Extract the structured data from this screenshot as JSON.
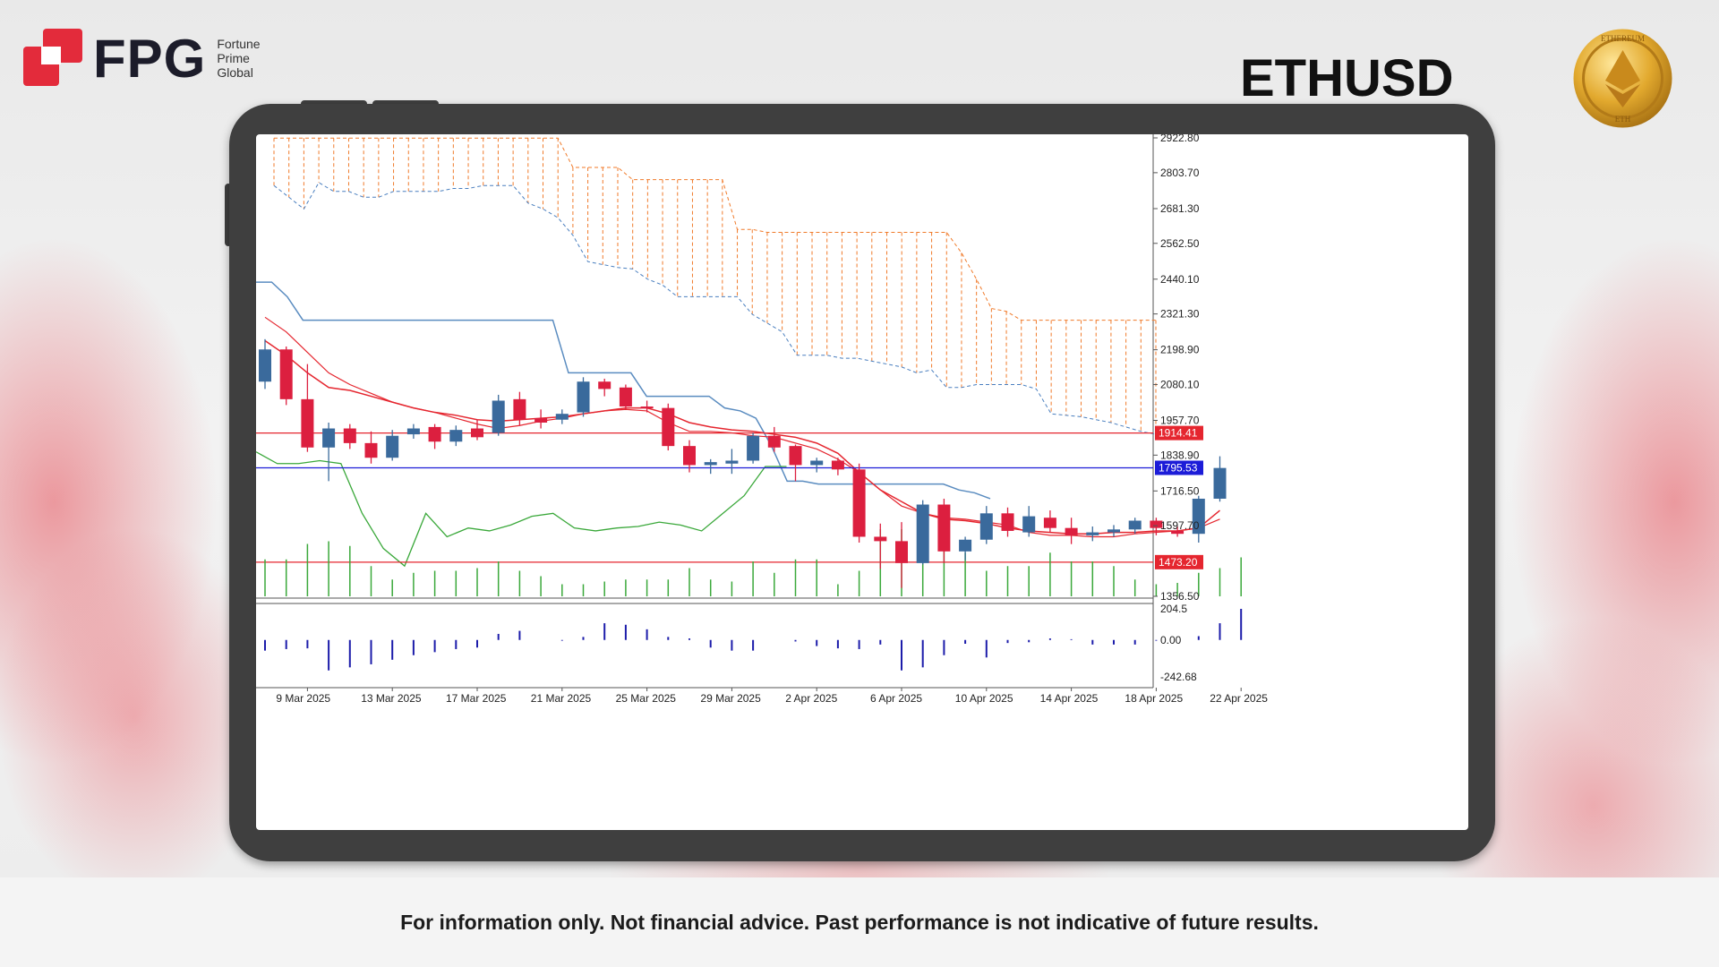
{
  "brand": {
    "name": "FPG",
    "line1": "Fortune",
    "line2": "Prime",
    "line3": "Global",
    "red": "#e32b3b"
  },
  "symbol": "ETHUSD",
  "coin": {
    "top_text": "ETHEREUM",
    "bottom_text": "ETH",
    "icon": "ethereum-diamond-icon"
  },
  "disclaimer": "For information only. Not financial advice. Past performance is not indicative of future results.",
  "colors": {
    "bull": "#3a6a9c",
    "bear": "#dc1f3f",
    "cloud": "#f07a2a",
    "senkou_b": "#4a7fbf",
    "kijun": "#5a8cc0",
    "ma_fast": "#e5262f",
    "chikou": "#3aa83a",
    "volume": "#3aa83a",
    "hline_red": "#e5262f",
    "hline_blue": "#1c1cd8",
    "macd": "#1c1caa"
  },
  "chart_data": {
    "type": "candlestick",
    "y_ticks": [
      "2922.80",
      "2803.70",
      "2681.30",
      "2562.50",
      "2440.10",
      "2321.30",
      "2198.90",
      "2080.10",
      "1957.70",
      "1838.90",
      "1716.50",
      "1597.70",
      "1356.50"
    ],
    "ylim": [
      1356.5,
      2922.8
    ],
    "x_ticks": [
      {
        "i": 2,
        "label": "9 Mar 2025"
      },
      {
        "i": 6,
        "label": "13 Mar 2025"
      },
      {
        "i": 10,
        "label": "17 Mar 2025"
      },
      {
        "i": 14,
        "label": "21 Mar 2025"
      },
      {
        "i": 18,
        "label": "25 Mar 2025"
      },
      {
        "i": 22,
        "label": "29 Mar 2025"
      },
      {
        "i": 26,
        "label": "2 Apr 2025"
      },
      {
        "i": 30,
        "label": "6 Apr 2025"
      },
      {
        "i": 34,
        "label": "10 Apr 2025"
      },
      {
        "i": 38,
        "label": "14 Apr 2025"
      },
      {
        "i": 42,
        "label": "18 Apr 2025"
      },
      {
        "i": 46,
        "label": "22 Apr 2025"
      }
    ],
    "candles": [
      {
        "o": 2090,
        "h": 2235,
        "l": 2065,
        "c": 2200
      },
      {
        "o": 2200,
        "h": 2210,
        "l": 2010,
        "c": 2030
      },
      {
        "o": 2030,
        "h": 2150,
        "l": 1850,
        "c": 1865
      },
      {
        "o": 1865,
        "h": 1950,
        "l": 1750,
        "c": 1930
      },
      {
        "o": 1930,
        "h": 1945,
        "l": 1860,
        "c": 1880
      },
      {
        "o": 1880,
        "h": 1920,
        "l": 1810,
        "c": 1830
      },
      {
        "o": 1830,
        "h": 1925,
        "l": 1820,
        "c": 1905
      },
      {
        "o": 1910,
        "h": 1945,
        "l": 1895,
        "c": 1930
      },
      {
        "o": 1935,
        "h": 1945,
        "l": 1860,
        "c": 1885
      },
      {
        "o": 1885,
        "h": 1940,
        "l": 1870,
        "c": 1925
      },
      {
        "o": 1930,
        "h": 1960,
        "l": 1890,
        "c": 1900
      },
      {
        "o": 1915,
        "h": 2045,
        "l": 1905,
        "c": 2025
      },
      {
        "o": 2030,
        "h": 2055,
        "l": 1940,
        "c": 1960
      },
      {
        "o": 1965,
        "h": 1995,
        "l": 1930,
        "c": 1950
      },
      {
        "o": 1960,
        "h": 1995,
        "l": 1945,
        "c": 1980
      },
      {
        "o": 1985,
        "h": 2105,
        "l": 1970,
        "c": 2090
      },
      {
        "o": 2090,
        "h": 2100,
        "l": 2040,
        "c": 2065
      },
      {
        "o": 2070,
        "h": 2080,
        "l": 1995,
        "c": 2005
      },
      {
        "o": 2005,
        "h": 2025,
        "l": 1985,
        "c": 2000
      },
      {
        "o": 2000,
        "h": 2015,
        "l": 1855,
        "c": 1870
      },
      {
        "o": 1870,
        "h": 1890,
        "l": 1780,
        "c": 1805
      },
      {
        "o": 1805,
        "h": 1825,
        "l": 1775,
        "c": 1815
      },
      {
        "o": 1810,
        "h": 1860,
        "l": 1775,
        "c": 1820
      },
      {
        "o": 1820,
        "h": 1915,
        "l": 1810,
        "c": 1905
      },
      {
        "o": 1905,
        "h": 1935,
        "l": 1850,
        "c": 1865
      },
      {
        "o": 1870,
        "h": 1875,
        "l": 1750,
        "c": 1805
      },
      {
        "o": 1805,
        "h": 1830,
        "l": 1780,
        "c": 1820
      },
      {
        "o": 1820,
        "h": 1830,
        "l": 1770,
        "c": 1790
      },
      {
        "o": 1790,
        "h": 1810,
        "l": 1540,
        "c": 1560
      },
      {
        "o": 1560,
        "h": 1605,
        "l": 1450,
        "c": 1545
      },
      {
        "o": 1545,
        "h": 1610,
        "l": 1385,
        "c": 1470
      },
      {
        "o": 1470,
        "h": 1685,
        "l": 1465,
        "c": 1670
      },
      {
        "o": 1670,
        "h": 1690,
        "l": 1470,
        "c": 1510
      },
      {
        "o": 1510,
        "h": 1560,
        "l": 1480,
        "c": 1550
      },
      {
        "o": 1550,
        "h": 1665,
        "l": 1535,
        "c": 1640
      },
      {
        "o": 1640,
        "h": 1660,
        "l": 1560,
        "c": 1580
      },
      {
        "o": 1575,
        "h": 1665,
        "l": 1560,
        "c": 1630
      },
      {
        "o": 1625,
        "h": 1650,
        "l": 1575,
        "c": 1590
      },
      {
        "o": 1590,
        "h": 1625,
        "l": 1535,
        "c": 1565
      },
      {
        "o": 1565,
        "h": 1595,
        "l": 1545,
        "c": 1575
      },
      {
        "o": 1575,
        "h": 1600,
        "l": 1560,
        "c": 1585
      },
      {
        "o": 1585,
        "h": 1625,
        "l": 1570,
        "c": 1615
      },
      {
        "o": 1615,
        "h": 1625,
        "l": 1565,
        "c": 1590
      },
      {
        "o": 1580,
        "h": 1595,
        "l": 1560,
        "c": 1570
      },
      {
        "o": 1570,
        "h": 1700,
        "l": 1540,
        "c": 1690
      },
      {
        "o": 1690,
        "h": 1835,
        "l": 1680,
        "c": 1795
      }
    ],
    "volume": [
      0.55,
      0.55,
      0.78,
      0.82,
      0.75,
      0.45,
      0.25,
      0.35,
      0.38,
      0.38,
      0.42,
      0.52,
      0.38,
      0.3,
      0.18,
      0.18,
      0.22,
      0.25,
      0.25,
      0.25,
      0.42,
      0.25,
      0.22,
      0.52,
      0.35,
      0.55,
      0.55,
      0.18,
      0.38,
      1.0,
      1.0,
      1.0,
      1.0,
      0.65,
      0.38,
      0.45,
      0.45,
      0.65,
      0.52,
      0.52,
      0.45,
      0.25,
      0.18,
      0.2,
      0.35,
      0.42,
      0.58
    ],
    "macd": [
      -70,
      -60,
      -55,
      -200,
      -180,
      -160,
      -130,
      -100,
      -80,
      -60,
      -50,
      40,
      60,
      0,
      -5,
      20,
      110,
      100,
      70,
      20,
      10,
      -50,
      -70,
      -70,
      0,
      -10,
      -40,
      -55,
      -60,
      -30,
      -200,
      -180,
      -100,
      -25,
      -115,
      -20,
      -15,
      10,
      5,
      -30,
      -30,
      -30,
      -5,
      0,
      25,
      110,
      204.5
    ],
    "macd_axis": {
      "top": "204.5",
      "zero": "0.00",
      "bottom": "-242.68",
      "ylim": [
        -242.68,
        204.5
      ]
    },
    "hlines": [
      {
        "value": 1914.41,
        "label": "1914.41",
        "color": "#e5262f"
      },
      {
        "value": 1795.53,
        "label": "1795.53",
        "color": "#1c1cd8"
      },
      {
        "value": 1473.2,
        "label": "1473.20",
        "color": "#e5262f"
      }
    ],
    "cloud_top": [
      2922,
      2922,
      2922,
      2922,
      2922,
      2922,
      2922,
      2922,
      2922,
      2922,
      2922,
      2922,
      2922,
      2922,
      2922,
      2922,
      2922,
      2922,
      2922,
      2922,
      2822,
      2822,
      2822,
      2822,
      2780,
      2780,
      2780,
      2780,
      2780,
      2780,
      2780,
      2610,
      2610,
      2600,
      2600,
      2600,
      2600,
      2600,
      2600,
      2600,
      2600,
      2600,
      2600,
      2600,
      2600,
      2600,
      2530,
      2440,
      2340,
      2330,
      2300,
      2300,
      2300,
      2300,
      2300,
      2300,
      2300,
      2300,
      2300,
      2300
    ],
    "cloud_bottom": [
      2760,
      2720,
      2680,
      2770,
      2740,
      2740,
      2720,
      2720,
      2740,
      2740,
      2740,
      2740,
      2750,
      2750,
      2760,
      2760,
      2760,
      2700,
      2680,
      2650,
      2590,
      2500,
      2490,
      2480,
      2475,
      2440,
      2420,
      2380,
      2380,
      2380,
      2380,
      2380,
      2320,
      2290,
      2260,
      2180,
      2180,
      2180,
      2170,
      2170,
      2160,
      2150,
      2140,
      2120,
      2130,
      2070,
      2070,
      2080,
      2080,
      2080,
      2080,
      2065,
      1980,
      1975,
      1970,
      1960,
      1950,
      1935,
      1920,
      1910
    ],
    "kijun": [
      2430,
      2430,
      2380,
      2300,
      2300,
      2300,
      2300,
      2300,
      2300,
      2300,
      2300,
      2300,
      2300,
      2300,
      2300,
      2300,
      2300,
      2300,
      2300,
      2300,
      2120,
      2120,
      2120,
      2120,
      2120,
      2040,
      2040,
      2040,
      2040,
      2040,
      2000,
      1990,
      1965,
      1870,
      1750,
      1750,
      1740,
      1740,
      1740,
      1740,
      1740,
      1740,
      1740,
      1740,
      1740,
      1720,
      1710,
      1690
    ],
    "ma_fast": [
      2230,
      2180,
      2120,
      2070,
      2060,
      2040,
      2020,
      2000,
      1985,
      1975,
      1960,
      1955,
      1960,
      1965,
      1970,
      1980,
      1990,
      2000,
      2000,
      1980,
      1950,
      1935,
      1925,
      1920,
      1910,
      1900,
      1880,
      1845,
      1780,
      1720,
      1680,
      1640,
      1620,
      1615,
      1605,
      1590,
      1580,
      1575,
      1570,
      1570,
      1575,
      1575,
      1580,
      1580,
      1590,
      1650
    ],
    "ma_mid": [
      2310,
      2260,
      2190,
      2120,
      2080,
      2050,
      2020,
      2000,
      1985,
      1965,
      1945,
      1930,
      1940,
      1955,
      1965,
      1980,
      1990,
      1995,
      1990,
      1950,
      1920,
      1920,
      1915,
      1905,
      1900,
      1880,
      1860,
      1825,
      1780,
      1720,
      1665,
      1640,
      1625,
      1620,
      1610,
      1600,
      1575,
      1565,
      1565,
      1560,
      1560,
      1570,
      1575,
      1580,
      1590,
      1620
    ],
    "chikou": [
      1850,
      1810,
      1810,
      1820,
      1810,
      1640,
      1520,
      1460,
      1640,
      1560,
      1590,
      1580,
      1600,
      1630,
      1640,
      1590,
      1580,
      1590,
      1595,
      1610,
      1600,
      1580,
      1640,
      1700,
      1800,
      1800
    ]
  }
}
